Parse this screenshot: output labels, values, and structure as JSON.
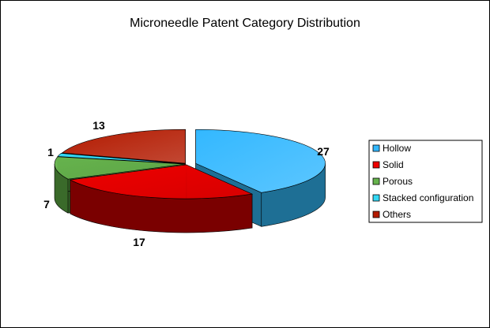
{
  "chart_data": {
    "type": "pie",
    "title": "Microneedle Patent Category Distribution",
    "categories": [
      "Hollow",
      "Solid",
      "Porous",
      "Stacked configuration",
      "Others"
    ],
    "values": [
      27,
      17,
      7,
      1,
      13
    ],
    "colors": [
      "#33b8ff",
      "#ee0000",
      "#66b34d",
      "#33d8f5",
      "#b31a00"
    ],
    "side_colors": [
      "#1e6f95",
      "#7a0000",
      "#3a6a2a",
      "#1a8aa0",
      "#6a1000"
    ],
    "three_d": true,
    "exploded": true,
    "legend_position": "right"
  }
}
